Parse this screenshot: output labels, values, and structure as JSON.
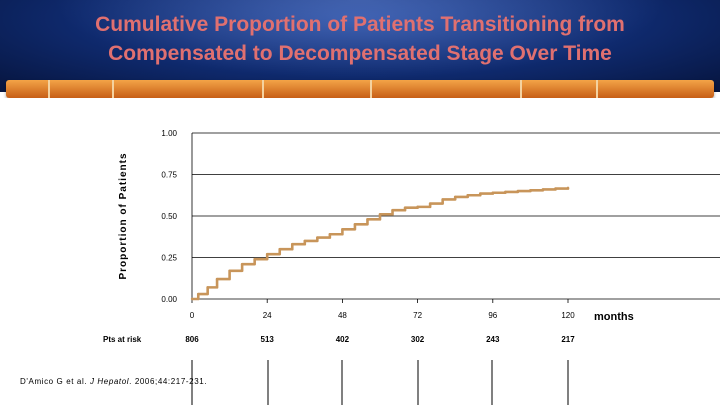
{
  "title_line1": "Cumulative Proportion of Patients Transitioning from",
  "title_line2": "Compensated to Decompensated Stage Over Time",
  "citation": {
    "authors": "D'Amico G et al. ",
    "journal": "J Hepatol",
    "details": ". 2006;44:217-231."
  },
  "colors": {
    "title": "#e07070",
    "curve": "#c8955a",
    "banner": "#0f2a6e",
    "rail": "#e58a33"
  },
  "chart_data": {
    "type": "line",
    "title": "",
    "xlabel": "months",
    "ylabel": "Proportion of Patients",
    "xlim": [
      0,
      120
    ],
    "ylim": [
      0,
      1
    ],
    "xticks": [
      "0",
      "24",
      "48",
      "72",
      "96",
      "120"
    ],
    "yticks": [
      "0.00",
      "0.25",
      "0.50",
      "0.75",
      "1.00"
    ],
    "grid": true,
    "series": [
      {
        "x": [
          0,
          2,
          5,
          8,
          12,
          16,
          20,
          24,
          28,
          32,
          36,
          40,
          44,
          48,
          52,
          56,
          60,
          64,
          68,
          72,
          76,
          80,
          84,
          88,
          92,
          96,
          100,
          104,
          108,
          112,
          116,
          120
        ],
        "y": [
          0.0,
          0.03,
          0.07,
          0.12,
          0.17,
          0.21,
          0.24,
          0.27,
          0.3,
          0.33,
          0.35,
          0.37,
          0.39,
          0.42,
          0.45,
          0.48,
          0.51,
          0.535,
          0.55,
          0.555,
          0.575,
          0.6,
          0.615,
          0.625,
          0.635,
          0.64,
          0.645,
          0.65,
          0.655,
          0.66,
          0.665,
          0.67
        ]
      }
    ],
    "at_risk": {
      "label": "Pts at risk",
      "values": [
        "806",
        "513",
        "402",
        "302",
        "243",
        "217"
      ]
    }
  }
}
